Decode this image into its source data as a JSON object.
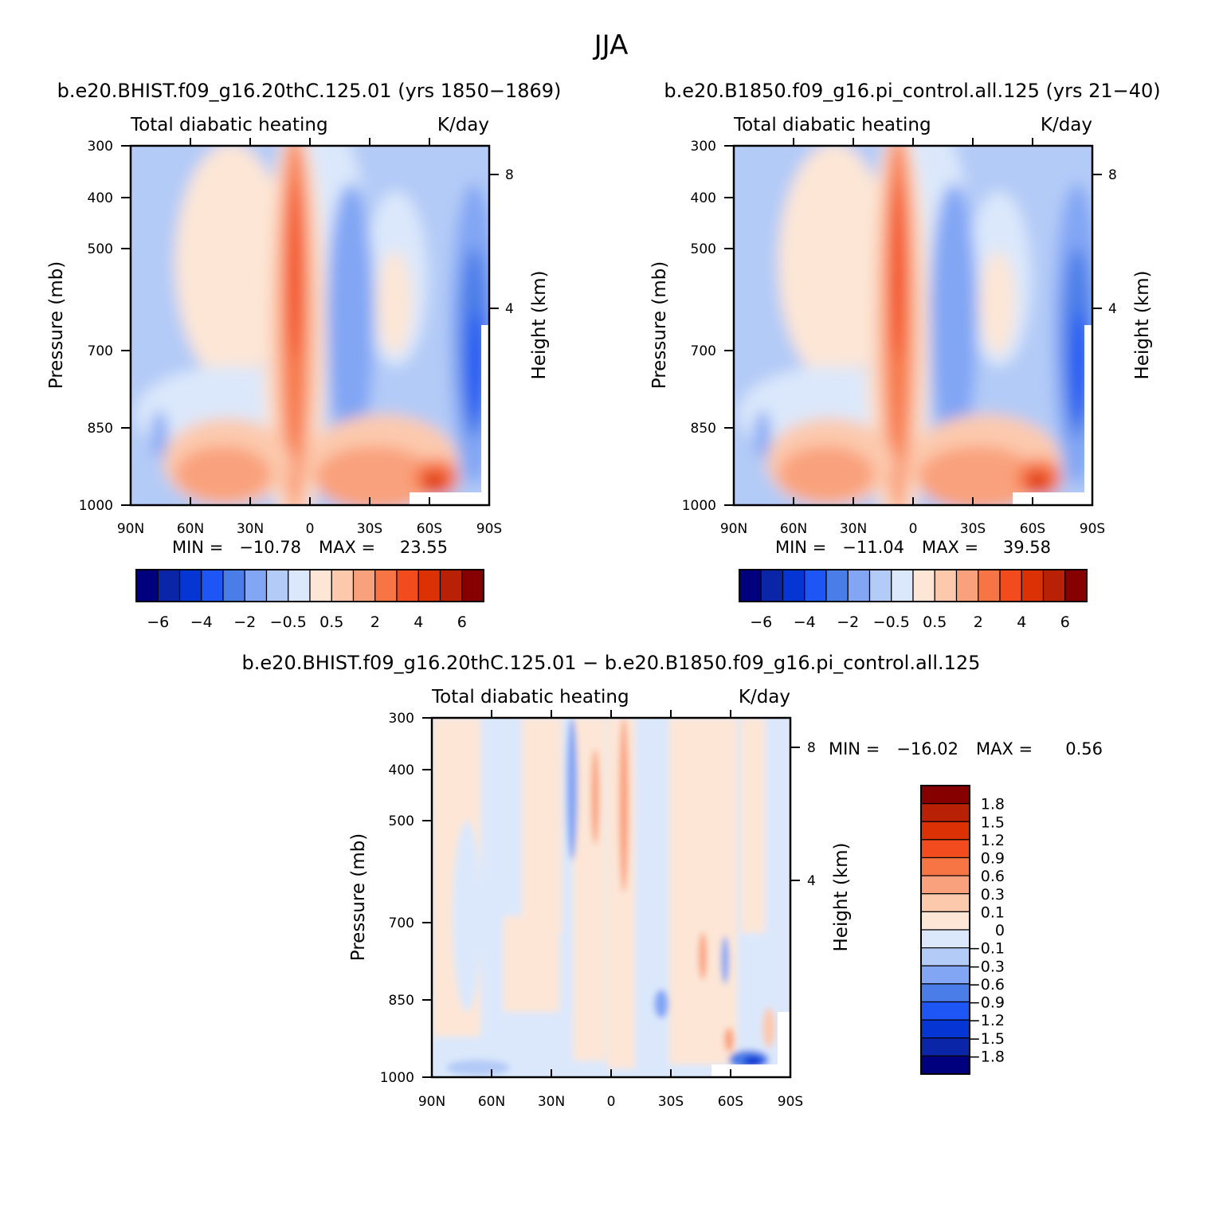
{
  "title": "JJA",
  "left_case_title": "b.e20.BHIST.f09_g16.20thC.125.01 (yrs 1850−1869)",
  "right_case_title": "b.e20.B1850.f09_g16.pi_control.all.125 (yrs 21−40)",
  "diff_title": "b.e20.BHIST.f09_g16.20thC.125.01 − b.e20.B1850.f09_g16.pi_control.all.125",
  "colors": {
    "main_scale": [
      "#00007f",
      "#0a25a8",
      "#0535d2",
      "#1e55f5",
      "#4a7de8",
      "#82a6f4",
      "#b3cbf7",
      "#dbe8fb",
      "#fde6d6",
      "#fcc9ad",
      "#f9a17c",
      "#f77444",
      "#f24c1e",
      "#dc3105",
      "#b82106",
      "#860000"
    ],
    "diff_scale": [
      "#00007f",
      "#0a25a8",
      "#0535d2",
      "#1e55f5",
      "#4a7de8",
      "#82a6f4",
      "#b3cbf7",
      "#dbe8fb",
      "#fde6d6",
      "#fcc9ad",
      "#f9a17c",
      "#f77444",
      "#f24c1e",
      "#dc3105",
      "#b82106",
      "#860000"
    ]
  },
  "chart_data": [
    {
      "type": "heatmap",
      "id": "control-left",
      "panel_label": "Total diabatic heating",
      "units": "K/day",
      "xlabel": "",
      "ylabel": "Pressure (mb)",
      "right_axis_label": "Height (km)",
      "x_ticks": [
        "90N",
        "60N",
        "30N",
        "0",
        "30S",
        "60S",
        "90S"
      ],
      "x_range": [
        90,
        -90
      ],
      "y_ticks": [
        "300",
        "400",
        "500",
        "700",
        "850",
        "1000"
      ],
      "y_range": [
        300,
        1000
      ],
      "height_ticks": [
        "8",
        "4"
      ],
      "min_label": "MIN =",
      "min": "−10.78",
      "max_label": "MAX =",
      "max": "23.55",
      "colorbar_labels": [
        "−6",
        "−4",
        "−2",
        "−0.5",
        "0.5",
        "2",
        "4",
        "6"
      ]
    },
    {
      "type": "heatmap",
      "id": "control-right",
      "panel_label": "Total diabatic heating",
      "units": "K/day",
      "xlabel": "",
      "ylabel": "Pressure (mb)",
      "right_axis_label": "Height (km)",
      "x_ticks": [
        "90N",
        "60N",
        "30N",
        "0",
        "30S",
        "60S",
        "90S"
      ],
      "x_range": [
        90,
        -90
      ],
      "y_ticks": [
        "300",
        "400",
        "500",
        "700",
        "850",
        "1000"
      ],
      "y_range": [
        300,
        1000
      ],
      "height_ticks": [
        "8",
        "4"
      ],
      "min_label": "MIN =",
      "min": "−11.04",
      "max_label": "MAX =",
      "max": "39.58",
      "colorbar_labels": [
        "−6",
        "−4",
        "−2",
        "−0.5",
        "0.5",
        "2",
        "4",
        "6"
      ]
    },
    {
      "type": "heatmap",
      "id": "difference",
      "panel_label": "Total diabatic heating",
      "units": "K/day",
      "xlabel": "",
      "ylabel": "Pressure (mb)",
      "right_axis_label": "Height (km)",
      "x_ticks": [
        "90N",
        "60N",
        "30N",
        "0",
        "30S",
        "60S",
        "90S"
      ],
      "x_range": [
        90,
        -90
      ],
      "y_ticks": [
        "300",
        "400",
        "500",
        "700",
        "850",
        "1000"
      ],
      "y_range": [
        300,
        1000
      ],
      "height_ticks": [
        "8",
        "4"
      ],
      "min_label": "MIN =",
      "min": "−16.02",
      "max_label": "MAX =",
      "max": "0.56",
      "colorbar_labels": [
        "1.8",
        "1.5",
        "1.2",
        "0.9",
        "0.6",
        "0.3",
        "0.1",
        "0",
        "−0.1",
        "−0.3",
        "−0.6",
        "−0.9",
        "−1.2",
        "−1.5",
        "−1.8"
      ]
    }
  ]
}
